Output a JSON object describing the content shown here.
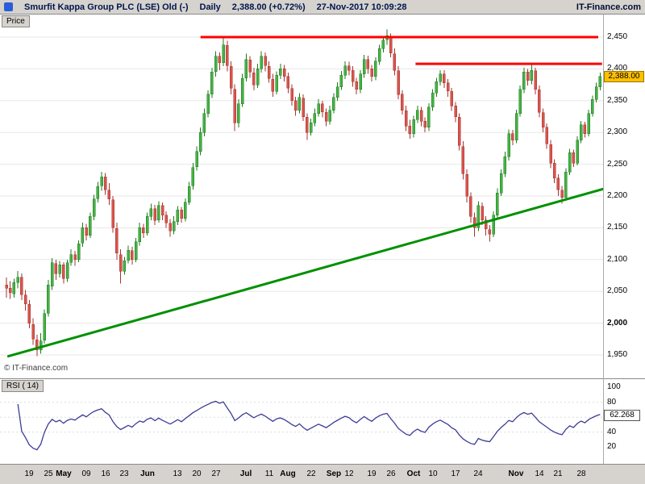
{
  "window": {
    "top_bar": {
      "instrument": "Smurfit Kappa Group PLC (LSE) Old (-)",
      "timeframe": "Daily",
      "quote": "2,388.00 (+0.72%)",
      "datetime": "27-Nov-2017 10:09:28",
      "brand": "IT-Finance.com"
    },
    "price_pane": {
      "tab_label": "Price",
      "watermark": "© IT-Finance.com",
      "last_price_badge": "2,388.00"
    },
    "rsi_pane": {
      "tab_label": "RSI ( 14)",
      "value_badge": "62.268"
    }
  },
  "chart_data": {
    "type": "candlestick",
    "title": "Smurfit Kappa Group PLC (LSE) Daily",
    "legend_position": "none",
    "grid": "horizontal",
    "price_axis": {
      "last_price": 2388.0,
      "ticks": [
        {
          "label": "2,450",
          "value": 2450
        },
        {
          "label": "2,400",
          "value": 2400
        },
        {
          "label": "2,350",
          "value": 2350
        },
        {
          "label": "2,300",
          "value": 2300
        },
        {
          "label": "2,250",
          "value": 2250
        },
        {
          "label": "2,200",
          "value": 2200
        },
        {
          "label": "2,150",
          "value": 2150
        },
        {
          "label": "2,100",
          "value": 2100
        },
        {
          "label": "2,050",
          "value": 2050
        },
        {
          "label": "2,000",
          "value": 2000,
          "bold": true
        },
        {
          "label": "1,950",
          "value": 1950
        }
      ]
    },
    "x_ticks": [
      {
        "label": "19",
        "i": 6
      },
      {
        "label": "25",
        "i": 11
      },
      {
        "label": "May",
        "i": 15,
        "bold": true
      },
      {
        "label": "09",
        "i": 21
      },
      {
        "label": "16",
        "i": 26
      },
      {
        "label": "23",
        "i": 31
      },
      {
        "label": "Jun",
        "i": 37,
        "bold": true
      },
      {
        "label": "13",
        "i": 45
      },
      {
        "label": "20",
        "i": 50
      },
      {
        "label": "27",
        "i": 55
      },
      {
        "label": "Jul",
        "i": 63,
        "bold": true
      },
      {
        "label": "11",
        "i": 69
      },
      {
        "label": "Aug",
        "i": 74,
        "bold": true
      },
      {
        "label": "22",
        "i": 80
      },
      {
        "label": "Sep",
        "i": 86,
        "bold": true
      },
      {
        "label": "12",
        "i": 90
      },
      {
        "label": "19",
        "i": 96
      },
      {
        "label": "26",
        "i": 101
      },
      {
        "label": "Oct",
        "i": 107,
        "bold": true
      },
      {
        "label": "10",
        "i": 112
      },
      {
        "label": "17",
        "i": 118
      },
      {
        "label": "24",
        "i": 124
      },
      {
        "label": "Nov",
        "i": 134,
        "bold": true
      },
      {
        "label": "14",
        "i": 140
      },
      {
        "label": "21",
        "i": 145
      },
      {
        "label": "28",
        "i": 151
      }
    ],
    "colors": {
      "up": "#45b245",
      "up_stroke": "#1f7a1f",
      "down": "#d9544d",
      "down_stroke": "#a33630",
      "resistance": "#ff0000",
      "trendline": "#009000",
      "rsi": "#3c3c96"
    },
    "overlays": {
      "resistance_lines": [
        {
          "price": 2450,
          "from": 51,
          "to": 155.5
        },
        {
          "price": 2408,
          "from": 107.5,
          "to": 156.5
        }
      ],
      "trendline": {
        "from": {
          "i": 0.5,
          "price": 1948
        },
        "to": {
          "i": 157,
          "price": 2211
        }
      }
    },
    "rsi": {
      "period": 14,
      "current": 62.268,
      "levels": [
        {
          "label": "100",
          "value": 100
        },
        {
          "label": "80",
          "value": 80
        },
        {
          "label": "60",
          "value": 60
        },
        {
          "label": "40",
          "value": 40
        },
        {
          "label": "20",
          "value": 20
        }
      ]
    },
    "candles": [
      [
        2060,
        2072,
        2040,
        2055
      ],
      [
        2055,
        2066,
        2038,
        2048
      ],
      [
        2046,
        2070,
        2040,
        2064
      ],
      [
        2064,
        2082,
        2055,
        2072
      ],
      [
        2072,
        2078,
        2036,
        2045
      ],
      [
        2044,
        2052,
        2020,
        2030
      ],
      [
        2030,
        2036,
        1992,
        2000
      ],
      [
        1998,
        2008,
        1966,
        1975
      ],
      [
        1974,
        1982,
        1948,
        1958
      ],
      [
        1958,
        1984,
        1952,
        1972
      ],
      [
        1973,
        2022,
        1968,
        2015
      ],
      [
        2016,
        2068,
        2010,
        2060
      ],
      [
        2058,
        2102,
        2052,
        2095
      ],
      [
        2094,
        2100,
        2068,
        2078
      ],
      [
        2078,
        2098,
        2072,
        2092
      ],
      [
        2092,
        2096,
        2062,
        2070
      ],
      [
        2070,
        2100,
        2065,
        2095
      ],
      [
        2096,
        2116,
        2090,
        2108
      ],
      [
        2108,
        2114,
        2090,
        2100
      ],
      [
        2100,
        2130,
        2096,
        2125
      ],
      [
        2126,
        2158,
        2120,
        2150
      ],
      [
        2150,
        2156,
        2130,
        2138
      ],
      [
        2138,
        2174,
        2134,
        2168
      ],
      [
        2168,
        2202,
        2162,
        2195
      ],
      [
        2196,
        2222,
        2190,
        2215
      ],
      [
        2216,
        2238,
        2208,
        2230
      ],
      [
        2230,
        2236,
        2202,
        2210
      ],
      [
        2209,
        2220,
        2186,
        2195
      ],
      [
        2194,
        2200,
        2142,
        2150
      ],
      [
        2149,
        2158,
        2100,
        2110
      ],
      [
        2108,
        2116,
        2062,
        2082
      ],
      [
        2082,
        2104,
        2076,
        2098
      ],
      [
        2099,
        2122,
        2094,
        2115
      ],
      [
        2114,
        2120,
        2092,
        2100
      ],
      [
        2100,
        2134,
        2096,
        2128
      ],
      [
        2128,
        2158,
        2122,
        2150
      ],
      [
        2150,
        2156,
        2134,
        2142
      ],
      [
        2142,
        2174,
        2138,
        2168
      ],
      [
        2168,
        2188,
        2162,
        2180
      ],
      [
        2180,
        2186,
        2154,
        2162
      ],
      [
        2162,
        2192,
        2158,
        2185
      ],
      [
        2185,
        2190,
        2162,
        2170
      ],
      [
        2170,
        2176,
        2150,
        2158
      ],
      [
        2157,
        2164,
        2136,
        2145
      ],
      [
        2145,
        2168,
        2140,
        2160
      ],
      [
        2160,
        2184,
        2154,
        2178
      ],
      [
        2178,
        2183,
        2158,
        2165
      ],
      [
        2165,
        2196,
        2160,
        2190
      ],
      [
        2190,
        2222,
        2186,
        2215
      ],
      [
        2216,
        2252,
        2210,
        2245
      ],
      [
        2246,
        2278,
        2240,
        2270
      ],
      [
        2270,
        2308,
        2264,
        2300
      ],
      [
        2300,
        2338,
        2294,
        2330
      ],
      [
        2330,
        2366,
        2324,
        2360
      ],
      [
        2360,
        2402,
        2354,
        2395
      ],
      [
        2396,
        2428,
        2388,
        2420
      ],
      [
        2420,
        2426,
        2398,
        2410
      ],
      [
        2410,
        2450,
        2404,
        2438
      ],
      [
        2437,
        2444,
        2396,
        2405
      ],
      [
        2404,
        2412,
        2360,
        2370
      ],
      [
        2368,
        2376,
        2302,
        2315
      ],
      [
        2315,
        2352,
        2308,
        2345
      ],
      [
        2345,
        2392,
        2340,
        2385
      ],
      [
        2386,
        2424,
        2380,
        2415
      ],
      [
        2414,
        2420,
        2386,
        2395
      ],
      [
        2394,
        2402,
        2366,
        2375
      ],
      [
        2375,
        2408,
        2370,
        2400
      ],
      [
        2400,
        2428,
        2394,
        2420
      ],
      [
        2420,
        2426,
        2396,
        2405
      ],
      [
        2404,
        2412,
        2378,
        2385
      ],
      [
        2384,
        2392,
        2356,
        2365
      ],
      [
        2365,
        2396,
        2360,
        2390
      ],
      [
        2390,
        2408,
        2384,
        2400
      ],
      [
        2400,
        2406,
        2380,
        2388
      ],
      [
        2388,
        2394,
        2362,
        2370
      ],
      [
        2369,
        2376,
        2342,
        2350
      ],
      [
        2350,
        2356,
        2326,
        2335
      ],
      [
        2335,
        2362,
        2330,
        2355
      ],
      [
        2354,
        2360,
        2318,
        2325
      ],
      [
        2324,
        2330,
        2288,
        2300
      ],
      [
        2300,
        2322,
        2295,
        2315
      ],
      [
        2315,
        2338,
        2310,
        2330
      ],
      [
        2330,
        2352,
        2325,
        2345
      ],
      [
        2345,
        2350,
        2324,
        2332
      ],
      [
        2332,
        2338,
        2310,
        2318
      ],
      [
        2318,
        2342,
        2312,
        2335
      ],
      [
        2335,
        2362,
        2330,
        2355
      ],
      [
        2355,
        2379,
        2350,
        2372
      ],
      [
        2372,
        2397,
        2367,
        2390
      ],
      [
        2390,
        2412,
        2384,
        2405
      ],
      [
        2405,
        2411,
        2390,
        2398
      ],
      [
        2398,
        2404,
        2372,
        2380
      ],
      [
        2380,
        2386,
        2360,
        2368
      ],
      [
        2368,
        2398,
        2362,
        2392
      ],
      [
        2392,
        2422,
        2386,
        2415
      ],
      [
        2415,
        2421,
        2392,
        2400
      ],
      [
        2400,
        2406,
        2380,
        2388
      ],
      [
        2388,
        2418,
        2382,
        2412
      ],
      [
        2412,
        2438,
        2406,
        2432
      ],
      [
        2432,
        2452,
        2426,
        2445
      ],
      [
        2446,
        2462,
        2438,
        2452
      ],
      [
        2450,
        2456,
        2418,
        2425
      ],
      [
        2424,
        2432,
        2390,
        2398
      ],
      [
        2397,
        2404,
        2352,
        2360
      ],
      [
        2360,
        2366,
        2328,
        2335
      ],
      [
        2334,
        2342,
        2302,
        2310
      ],
      [
        2310,
        2320,
        2290,
        2298
      ],
      [
        2298,
        2326,
        2292,
        2320
      ],
      [
        2320,
        2342,
        2315,
        2335
      ],
      [
        2335,
        2340,
        2310,
        2318
      ],
      [
        2318,
        2324,
        2300,
        2308
      ],
      [
        2308,
        2346,
        2302,
        2340
      ],
      [
        2340,
        2368,
        2334,
        2362
      ],
      [
        2362,
        2386,
        2356,
        2380
      ],
      [
        2380,
        2398,
        2374,
        2392
      ],
      [
        2392,
        2398,
        2370,
        2378
      ],
      [
        2378,
        2384,
        2356,
        2365
      ],
      [
        2365,
        2370,
        2334,
        2342
      ],
      [
        2342,
        2348,
        2316,
        2325
      ],
      [
        2324,
        2330,
        2272,
        2280
      ],
      [
        2278,
        2286,
        2226,
        2235
      ],
      [
        2234,
        2242,
        2190,
        2200
      ],
      [
        2199,
        2206,
        2158,
        2168
      ],
      [
        2166,
        2174,
        2136,
        2150
      ],
      [
        2150,
        2192,
        2145,
        2185
      ],
      [
        2184,
        2190,
        2154,
        2162
      ],
      [
        2162,
        2168,
        2138,
        2148
      ],
      [
        2147,
        2154,
        2128,
        2140
      ],
      [
        2140,
        2176,
        2135,
        2170
      ],
      [
        2170,
        2212,
        2165,
        2205
      ],
      [
        2205,
        2242,
        2200,
        2235
      ],
      [
        2235,
        2270,
        2230,
        2262
      ],
      [
        2262,
        2305,
        2256,
        2298
      ],
      [
        2298,
        2304,
        2280,
        2288
      ],
      [
        2288,
        2336,
        2283,
        2330
      ],
      [
        2330,
        2374,
        2325,
        2368
      ],
      [
        2368,
        2402,
        2362,
        2395
      ],
      [
        2395,
        2400,
        2374,
        2382
      ],
      [
        2382,
        2406,
        2376,
        2398
      ],
      [
        2397,
        2402,
        2360,
        2368
      ],
      [
        2367,
        2374,
        2324,
        2332
      ],
      [
        2331,
        2338,
        2300,
        2308
      ],
      [
        2308,
        2314,
        2274,
        2282
      ],
      [
        2281,
        2288,
        2244,
        2252
      ],
      [
        2252,
        2258,
        2220,
        2228
      ],
      [
        2228,
        2234,
        2200,
        2210
      ],
      [
        2209,
        2216,
        2188,
        2198
      ],
      [
        2198,
        2244,
        2194,
        2238
      ],
      [
        2238,
        2274,
        2233,
        2268
      ],
      [
        2268,
        2273,
        2246,
        2252
      ],
      [
        2252,
        2294,
        2248,
        2288
      ],
      [
        2288,
        2318,
        2283,
        2312
      ],
      [
        2312,
        2317,
        2292,
        2298
      ],
      [
        2298,
        2336,
        2294,
        2330
      ],
      [
        2330,
        2358,
        2325,
        2352
      ],
      [
        2352,
        2378,
        2347,
        2372
      ],
      [
        2372,
        2394,
        2366,
        2388
      ]
    ]
  }
}
